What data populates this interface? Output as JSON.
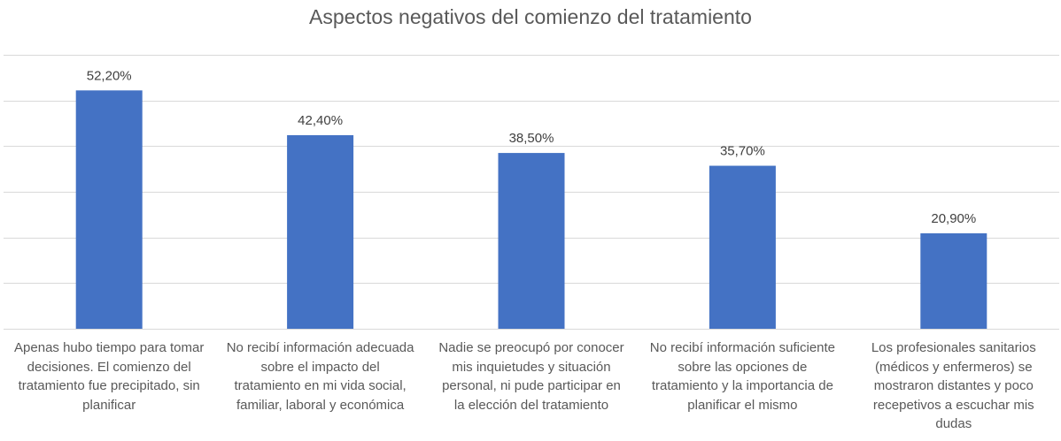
{
  "chart_data": {
    "type": "bar",
    "title": "Aspectos negativos del comienzo del tratamiento",
    "categories": [
      "Apenas hubo tiempo para tomar decisiones. El comienzo del tratamiento fue precipitado, sin planificar",
      "No recibí información adecuada sobre el impacto del tratamiento en mi vida social, familiar, laboral y económica",
      "Nadie se preocupó por conocer mis inquietudes y situación personal, ni pude participar en la elección del tratamiento",
      "No recibí información suficiente sobre las opciones de tratamiento y la importancia de planificar el mismo",
      "Los profesionales sanitarios (médicos y enfermeros) se mostraron distantes y poco recepetivos a escuchar mis dudas"
    ],
    "category_lines": [
      [
        "Apenas hubo tiempo para tomar",
        "decisiones. El comienzo del",
        "tratamiento fue precipitado, sin",
        "planificar"
      ],
      [
        "No recibí información adecuada",
        "sobre el impacto del",
        "tratamiento en mi vida social,",
        "familiar, laboral y económica"
      ],
      [
        "Nadie se preocupó por conocer",
        "mis inquietudes y situación",
        "personal, ni pude participar en",
        "la elección del tratamiento"
      ],
      [
        "No recibí información suficiente",
        "sobre las opciones de",
        "tratamiento y la importancia de",
        "planificar el mismo"
      ],
      [
        "Los profesionales sanitarios",
        "(médicos y enfermeros) se",
        "mostraron distantes y poco",
        "recepetivos a escuchar mis",
        "dudas"
      ]
    ],
    "values": [
      52.2,
      42.4,
      38.5,
      35.7,
      20.9
    ],
    "value_labels": [
      "52,20%",
      "42,40%",
      "38,50%",
      "35,70%",
      "20,90%"
    ],
    "ylim": [
      0,
      60
    ],
    "grid": true,
    "bar_color": "#4472C4"
  }
}
